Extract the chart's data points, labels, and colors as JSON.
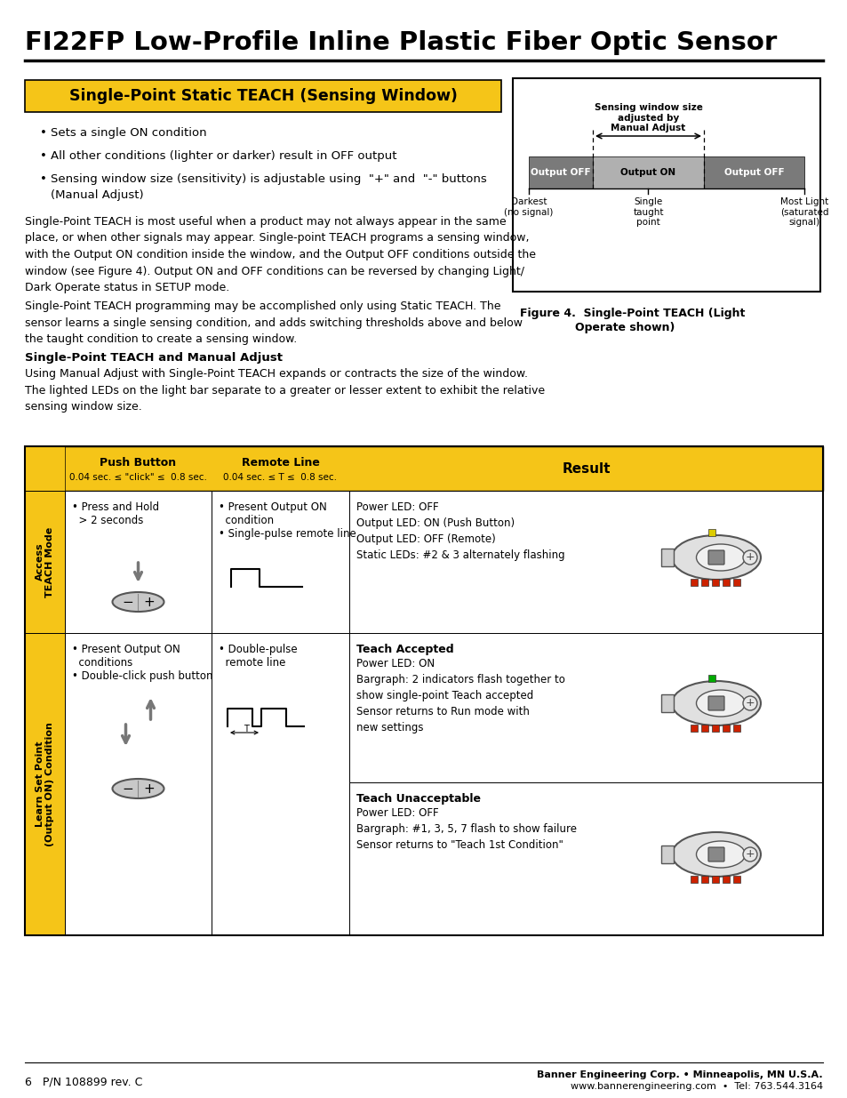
{
  "page_title": "FI22FP Low-Profile Inline Plastic Fiber Optic Sensor",
  "section_header": "Single-Point Static TEACH (Sensing Window)",
  "section_header_bg": "#F5C518",
  "bullet_points": [
    "Sets a single ON condition",
    "All other conditions (lighter or darker) result in OFF output",
    "Sensing window size (sensitivity) is adjustable using  \"+\" and  \"-\" buttons\n(Manual Adjust)"
  ],
  "body_text_1": "Single-Point TEACH is most useful when a product may not always appear in the same\nplace, or when other signals may appear. Single-point TEACH programs a sensing window,\nwith the Output ON condition inside the window, and the Output OFF conditions outside the\nwindow (see Figure 4). Output ON and OFF conditions can be reversed by changing Light/\nDark Operate status in SETUP mode.",
  "body_text_2": "Single-Point TEACH programming may be accomplished only using Static TEACH. The\nsensor learns a single sensing condition, and adds switching thresholds above and below\nthe taught condition to create a sensing window.",
  "subsection_header": "Single-Point TEACH and Manual Adjust",
  "body_text_3": "Using Manual Adjust with Single-Point TEACH expands or contracts the size of the window.\nThe lighted LEDs on the light bar separate to a greater or lesser extent to exhibit the relative\nsensing window size.",
  "figure_caption_1": "Figure 4.  Single-Point TEACH (Light",
  "figure_caption_2": "Operate shown)",
  "figure_annotation": "Sensing window size\nadjusted by\nManual Adjust",
  "figure_bottom_labels": [
    [
      "Darkest",
      "(no signal)"
    ],
    [
      "Single",
      "taught",
      "point"
    ],
    [
      "Most Light",
      "(saturated",
      "signal)"
    ]
  ],
  "table_header_bg": "#F5C518",
  "col_header_pb": "Push Button",
  "col_header_pb_sub": "0.04 sec. ≤ \"click\" ≤  0.8 sec.",
  "col_header_rl": "Remote Line",
  "col_header_rl_sub": "0.04 sec. ≤ T ≤  0.8 sec.",
  "col_header_result": "Result",
  "row1_label": "Access\nTEACH Mode",
  "row1_push_line1": "• Press and Hold",
  "row1_push_line2": "  > 2 seconds",
  "row1_remote_line1": "• Present Output ON",
  "row1_remote_line2": "  condition",
  "row1_remote_line3": "• Single-pulse remote line",
  "row1_result": "Power LED: OFF\nOutput LED: ON (Push Button)\nOutput LED: OFF (Remote)\nStatic LEDs: #2 & 3 alternately flashing",
  "row2_label": "Learn Set Point\n(Output ON) Condition",
  "row2_push_line1": "• Present Output ON",
  "row2_push_line2": "  conditions",
  "row2_push_line3": "• Double-click push button",
  "row2_remote_line1": "• Double-pulse",
  "row2_remote_line2": "  remote line",
  "row2_result_accepted_title": "Teach Accepted",
  "row2_result_accepted": "Power LED: ON\nBargraph: 2 indicators flash together to\nshow single-point Teach accepted\nSensor returns to Run mode with\nnew settings",
  "row2_result_unaccepted_title": "Teach Unacceptable",
  "row2_result_unaccepted": "Power LED: OFF\nBargraph: #1, 3, 5, 7 flash to show failure\nSensor returns to \"Teach 1st Condition\"",
  "footer_company": "Banner Engineering Corp. • Minneapolis, MN U.S.A.",
  "footer_web": "www.bannerengineering.com  •  Tel: 763.544.3164",
  "footer_page": "6   P/N 108899 rev. C",
  "bg_color": "#ffffff",
  "text_color": "#000000",
  "table_yellow_bg": "#F5C518",
  "table_row_label_bg": "#e8d070"
}
